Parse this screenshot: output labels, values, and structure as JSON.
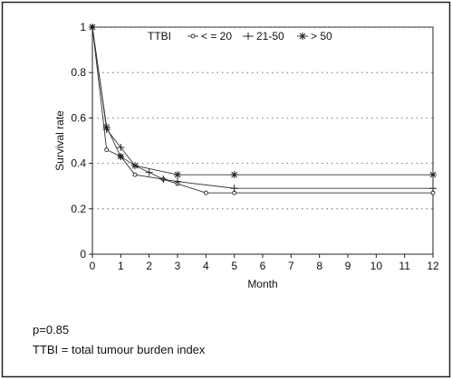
{
  "chart_data": {
    "type": "line",
    "title": "",
    "xlabel": "Month",
    "ylabel": "Survival rate",
    "xlim": [
      0,
      12
    ],
    "ylim": [
      0,
      1
    ],
    "x_ticks": [
      0,
      1,
      2,
      3,
      4,
      5,
      6,
      7,
      8,
      9,
      10,
      11,
      12
    ],
    "y_ticks": [
      0,
      0.2,
      0.4,
      0.6,
      0.8,
      1
    ],
    "y_tick_labels": [
      "0",
      "0.2",
      "0.4",
      "0.6",
      "0.8",
      "1"
    ],
    "grid": "horizontal dotted",
    "legend": {
      "title": "TTBI",
      "position": "top",
      "entries": [
        "< = 20",
        "21-50",
        "> 50"
      ]
    },
    "series": [
      {
        "name": "< = 20",
        "marker": "circle",
        "x": [
          0,
          0.5,
          1,
          1.5,
          2.5,
          3,
          4,
          5,
          12
        ],
        "y": [
          1,
          0.46,
          0.43,
          0.35,
          0.33,
          0.31,
          0.27,
          0.27,
          0.27
        ]
      },
      {
        "name": "21-50",
        "marker": "plus",
        "x": [
          0,
          0.5,
          1,
          1.5,
          2,
          2.5,
          3,
          5,
          12
        ],
        "y": [
          1,
          0.55,
          0.47,
          0.39,
          0.36,
          0.33,
          0.32,
          0.29,
          0.29
        ]
      },
      {
        "name": "> 50",
        "marker": "asterisk",
        "x": [
          0,
          0.5,
          1,
          1.5,
          3,
          5,
          12
        ],
        "y": [
          1,
          0.56,
          0.43,
          0.39,
          0.35,
          0.35,
          0.35
        ]
      }
    ]
  },
  "notes": {
    "p_value": "p=0.85",
    "definition": "TTBI = total tumour burden index"
  }
}
